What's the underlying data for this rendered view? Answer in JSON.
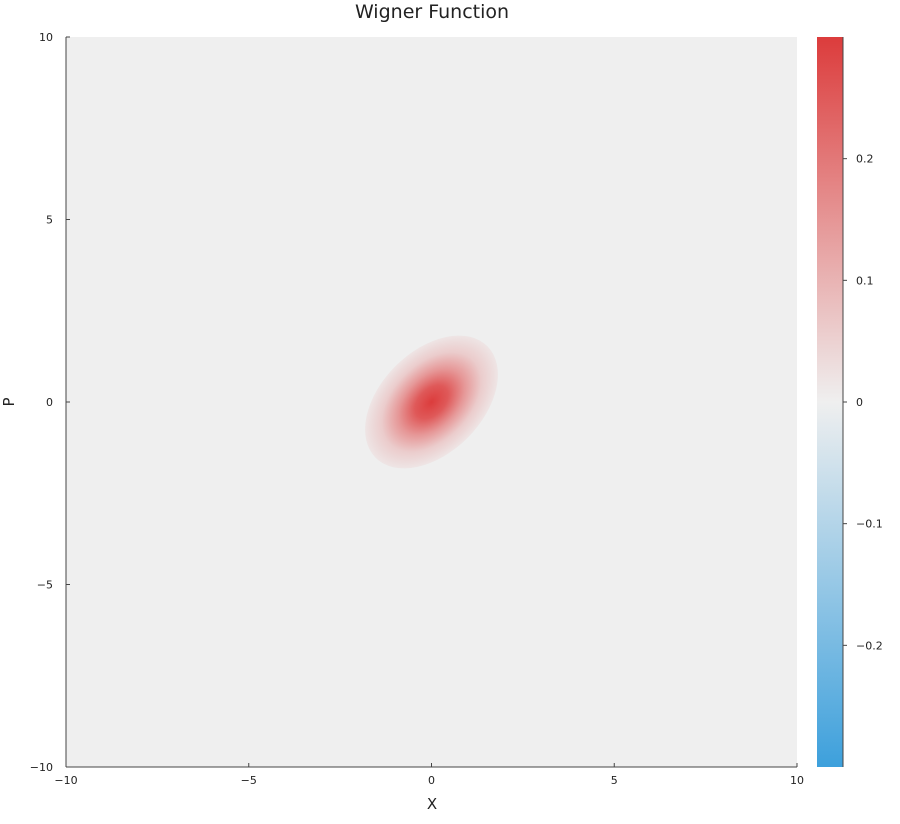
{
  "chart_data": {
    "type": "heatmap",
    "title": "Wigner Function",
    "xlabel": "X",
    "ylabel": "P",
    "xlim": [
      -10,
      10
    ],
    "ylim": [
      -10,
      10
    ],
    "x_ticks": [
      -10,
      -5,
      0,
      5,
      10
    ],
    "y_ticks": [
      -10,
      -5,
      0,
      5,
      10
    ],
    "x_tick_labels": [
      "−10",
      "−5",
      "0",
      "5",
      "10"
    ],
    "y_tick_labels": [
      "−10",
      "−5",
      "0",
      "5",
      "10"
    ],
    "grid": false,
    "colorbar": {
      "range": [
        -0.3,
        0.3
      ],
      "ticks": [
        0.2,
        0.1,
        0,
        -0.1,
        -0.2
      ],
      "tick_labels": [
        "0.2",
        "0.1",
        "0",
        "−0.1",
        "−0.2"
      ],
      "colors": {
        "negative": "#3da0dc",
        "zero": "#efefef",
        "positive": "#dc3c3c"
      }
    },
    "peak": {
      "x": 0,
      "p": 0,
      "value": 0.3,
      "sigma_major": 0.9,
      "sigma_minor": 0.58,
      "tilt_deg": 45
    }
  }
}
